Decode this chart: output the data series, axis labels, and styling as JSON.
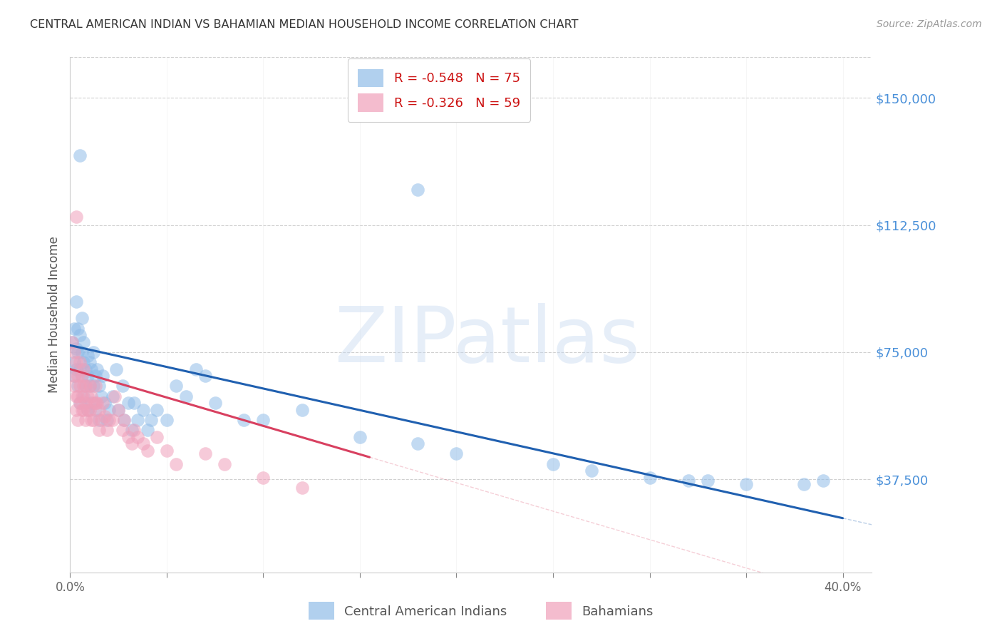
{
  "title": "CENTRAL AMERICAN INDIAN VS BAHAMIAN MEDIAN HOUSEHOLD INCOME CORRELATION CHART",
  "source": "Source: ZipAtlas.com",
  "ylabel": "Median Household Income",
  "xlim": [
    0.0,
    0.415
  ],
  "ylim": [
    10000,
    162000
  ],
  "ytick_vals": [
    37500,
    75000,
    112500,
    150000
  ],
  "ytick_labels": [
    "$37,500",
    "$75,000",
    "$112,500",
    "$150,000"
  ],
  "xtick_vals": [
    0.0,
    0.05,
    0.1,
    0.15,
    0.2,
    0.25,
    0.3,
    0.35,
    0.4
  ],
  "xtick_show": [
    "0.0%",
    "",
    "",
    "",
    "",
    "",
    "",
    "",
    "40.0%"
  ],
  "blue_R": "-0.548",
  "blue_N": "75",
  "pink_R": "-0.326",
  "pink_N": "59",
  "legend_label_blue": "Central American Indians",
  "legend_label_pink": "Bahamians",
  "watermark": "ZIPatlas",
  "background_color": "#ffffff",
  "grid_color": "#d0d0d0",
  "blue_color": "#90bce8",
  "pink_color": "#f0a0ba",
  "blue_line_color": "#2060b0",
  "pink_line_color": "#d84060",
  "title_color": "#333333",
  "source_color": "#999999",
  "ytick_color": "#4a90d9",
  "ylabel_color": "#555555",
  "legend_text_color": "#cc1111",
  "blue_pts": [
    [
      0.001,
      78000
    ],
    [
      0.002,
      72000
    ],
    [
      0.002,
      68000
    ],
    [
      0.002,
      82000
    ],
    [
      0.003,
      76000
    ],
    [
      0.003,
      90000
    ],
    [
      0.003,
      70000
    ],
    [
      0.004,
      75000
    ],
    [
      0.004,
      82000
    ],
    [
      0.004,
      65000
    ],
    [
      0.005,
      80000
    ],
    [
      0.005,
      70000
    ],
    [
      0.005,
      60000
    ],
    [
      0.006,
      75000
    ],
    [
      0.006,
      68000
    ],
    [
      0.006,
      85000
    ],
    [
      0.007,
      72000
    ],
    [
      0.007,
      62000
    ],
    [
      0.007,
      78000
    ],
    [
      0.008,
      70000
    ],
    [
      0.008,
      65000
    ],
    [
      0.009,
      68000
    ],
    [
      0.009,
      74000
    ],
    [
      0.009,
      58000
    ],
    [
      0.01,
      72000
    ],
    [
      0.01,
      65000
    ],
    [
      0.011,
      70000
    ],
    [
      0.011,
      60000
    ],
    [
      0.012,
      75000
    ],
    [
      0.012,
      65000
    ],
    [
      0.013,
      68000
    ],
    [
      0.013,
      58000
    ],
    [
      0.014,
      70000
    ],
    [
      0.015,
      65000
    ],
    [
      0.015,
      55000
    ],
    [
      0.016,
      62000
    ],
    [
      0.017,
      68000
    ],
    [
      0.018,
      60000
    ],
    [
      0.019,
      55000
    ],
    [
      0.02,
      58000
    ],
    [
      0.022,
      62000
    ],
    [
      0.024,
      70000
    ],
    [
      0.025,
      58000
    ],
    [
      0.027,
      65000
    ],
    [
      0.028,
      55000
    ],
    [
      0.03,
      60000
    ],
    [
      0.032,
      52000
    ],
    [
      0.033,
      60000
    ],
    [
      0.035,
      55000
    ],
    [
      0.038,
      58000
    ],
    [
      0.04,
      52000
    ],
    [
      0.042,
      55000
    ],
    [
      0.045,
      58000
    ],
    [
      0.05,
      55000
    ],
    [
      0.055,
      65000
    ],
    [
      0.06,
      62000
    ],
    [
      0.065,
      70000
    ],
    [
      0.07,
      68000
    ],
    [
      0.075,
      60000
    ],
    [
      0.09,
      55000
    ],
    [
      0.1,
      55000
    ],
    [
      0.12,
      58000
    ],
    [
      0.15,
      50000
    ],
    [
      0.18,
      48000
    ],
    [
      0.2,
      45000
    ],
    [
      0.25,
      42000
    ],
    [
      0.27,
      40000
    ],
    [
      0.3,
      38000
    ],
    [
      0.32,
      37000
    ],
    [
      0.33,
      37000
    ],
    [
      0.35,
      36000
    ],
    [
      0.38,
      36000
    ],
    [
      0.39,
      37000
    ],
    [
      0.005,
      133000
    ],
    [
      0.18,
      123000
    ]
  ],
  "pink_pts": [
    [
      0.001,
      78000
    ],
    [
      0.002,
      75000
    ],
    [
      0.002,
      68000
    ],
    [
      0.002,
      65000
    ],
    [
      0.003,
      72000
    ],
    [
      0.003,
      62000
    ],
    [
      0.003,
      58000
    ],
    [
      0.004,
      68000
    ],
    [
      0.004,
      62000
    ],
    [
      0.004,
      55000
    ],
    [
      0.005,
      65000
    ],
    [
      0.005,
      60000
    ],
    [
      0.005,
      72000
    ],
    [
      0.006,
      68000
    ],
    [
      0.006,
      62000
    ],
    [
      0.006,
      58000
    ],
    [
      0.007,
      65000
    ],
    [
      0.007,
      58000
    ],
    [
      0.007,
      70000
    ],
    [
      0.008,
      65000
    ],
    [
      0.008,
      60000
    ],
    [
      0.008,
      55000
    ],
    [
      0.009,
      62000
    ],
    [
      0.009,
      58000
    ],
    [
      0.01,
      65000
    ],
    [
      0.01,
      58000
    ],
    [
      0.011,
      62000
    ],
    [
      0.011,
      55000
    ],
    [
      0.012,
      60000
    ],
    [
      0.012,
      55000
    ],
    [
      0.013,
      65000
    ],
    [
      0.013,
      60000
    ],
    [
      0.014,
      60000
    ],
    [
      0.015,
      58000
    ],
    [
      0.015,
      52000
    ],
    [
      0.016,
      55000
    ],
    [
      0.017,
      60000
    ],
    [
      0.018,
      56000
    ],
    [
      0.019,
      52000
    ],
    [
      0.02,
      55000
    ],
    [
      0.022,
      55000
    ],
    [
      0.023,
      62000
    ],
    [
      0.025,
      58000
    ],
    [
      0.027,
      52000
    ],
    [
      0.028,
      55000
    ],
    [
      0.03,
      50000
    ],
    [
      0.032,
      48000
    ],
    [
      0.033,
      52000
    ],
    [
      0.035,
      50000
    ],
    [
      0.038,
      48000
    ],
    [
      0.04,
      46000
    ],
    [
      0.045,
      50000
    ],
    [
      0.05,
      46000
    ],
    [
      0.055,
      42000
    ],
    [
      0.07,
      45000
    ],
    [
      0.08,
      42000
    ],
    [
      0.1,
      38000
    ],
    [
      0.12,
      35000
    ],
    [
      0.003,
      115000
    ]
  ]
}
